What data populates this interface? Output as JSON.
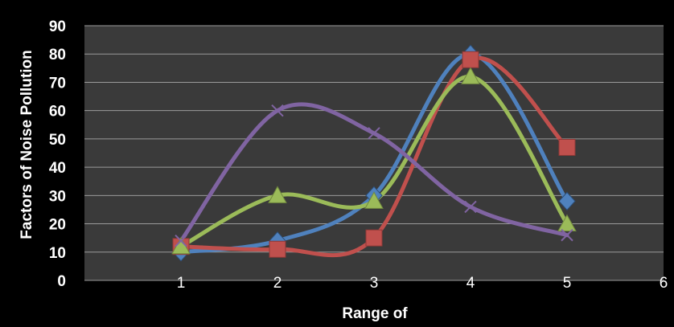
{
  "chart_data": {
    "type": "line",
    "title": "",
    "xlabel": "Range of",
    "ylabel": "Factors of Noise Pollution",
    "xlim": [
      0,
      6
    ],
    "ylim": [
      0,
      90
    ],
    "xticks": [
      "1",
      "2",
      "3",
      "4",
      "5",
      "6"
    ],
    "yticks": [
      "0",
      "10",
      "20",
      "30",
      "40",
      "50",
      "60",
      "70",
      "80",
      "90"
    ],
    "grid": true,
    "smooth": true,
    "x": [
      1,
      2,
      3,
      4,
      5
    ],
    "series": [
      {
        "color": "#4f81bd",
        "marker": "diamond",
        "values": [
          10,
          14,
          30,
          80,
          28
        ]
      },
      {
        "color": "#c0504d",
        "marker": "square",
        "values": [
          12,
          11,
          15,
          78,
          47
        ]
      },
      {
        "color": "#9bbb59",
        "marker": "triangle",
        "values": [
          12,
          30,
          28,
          72,
          20
        ]
      },
      {
        "color": "#8064a2",
        "marker": "x",
        "values": [
          14,
          60,
          52,
          26,
          16
        ]
      }
    ]
  }
}
